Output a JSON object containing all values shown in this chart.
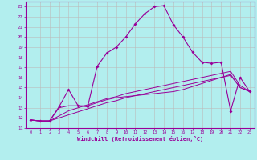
{
  "xlabel": "Windchill (Refroidissement éolien,°C)",
  "background_color": "#b2eeee",
  "grid_color": "#bbbbbb",
  "line_color": "#990099",
  "xlim": [
    -0.5,
    23.5
  ],
  "ylim": [
    11,
    23.5
  ],
  "xticks": [
    0,
    1,
    2,
    3,
    4,
    5,
    6,
    7,
    8,
    9,
    10,
    11,
    12,
    13,
    14,
    15,
    16,
    17,
    18,
    19,
    20,
    21,
    22,
    23
  ],
  "yticks": [
    11,
    12,
    13,
    14,
    15,
    16,
    17,
    18,
    19,
    20,
    21,
    22,
    23
  ],
  "series": [
    [
      11.8,
      11.7,
      11.7,
      13.1,
      14.8,
      13.2,
      13.1,
      17.1,
      18.4,
      19.0,
      20.0,
      21.3,
      22.3,
      23.0,
      23.1,
      21.2,
      20.0,
      18.5,
      17.5,
      17.4,
      17.5,
      12.7,
      16.0,
      14.6
    ],
    [
      11.8,
      11.7,
      11.7,
      13.0,
      13.2,
      13.2,
      13.2,
      13.5,
      13.8,
      14.0,
      14.1,
      14.2,
      14.3,
      14.4,
      14.5,
      14.6,
      14.8,
      15.1,
      15.4,
      15.7,
      16.0,
      16.3,
      15.0,
      14.6
    ],
    [
      11.8,
      11.7,
      11.7,
      12.2,
      12.7,
      13.0,
      13.3,
      13.6,
      13.9,
      14.1,
      14.4,
      14.6,
      14.8,
      15.0,
      15.2,
      15.4,
      15.6,
      15.8,
      16.0,
      16.2,
      16.4,
      16.6,
      15.2,
      14.6
    ],
    [
      11.8,
      11.7,
      11.7,
      12.0,
      12.3,
      12.6,
      12.9,
      13.2,
      13.5,
      13.7,
      14.0,
      14.2,
      14.4,
      14.6,
      14.8,
      15.0,
      15.2,
      15.4,
      15.6,
      15.8,
      16.0,
      16.2,
      15.0,
      14.6
    ]
  ]
}
